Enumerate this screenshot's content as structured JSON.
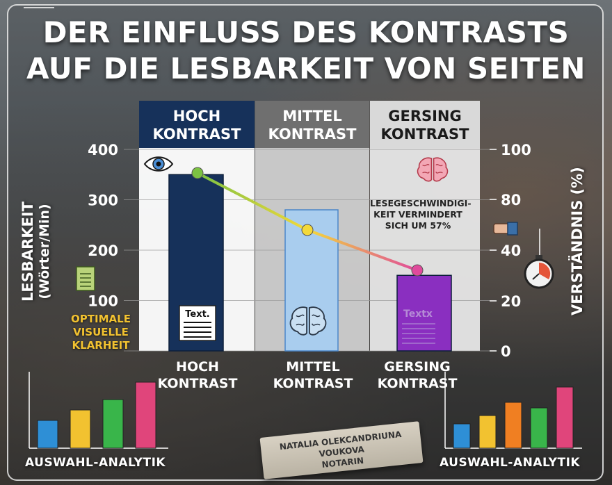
{
  "title": {
    "line1": "DER EINFLUSS DES KONTRASTS",
    "line2": "AUF DIE LESBARKEIT VON SEITEN"
  },
  "chart_data": {
    "type": "bar",
    "categories": [
      "HOCH KONTRAST",
      "MITTEL KONTRAST",
      "GERSING KONTRAST"
    ],
    "column_headers": [
      [
        "HOCH",
        "KONTRAST"
      ],
      [
        "MITTEL",
        "KONTRAST"
      ],
      [
        "GERSING",
        "KONTRAST"
      ]
    ],
    "x_labels": [
      [
        "HOCH",
        "KONTRAST"
      ],
      [
        "MITTEL",
        "KONTRAST"
      ],
      [
        "GERSING",
        "KONTRAST"
      ]
    ],
    "bar_series": {
      "values": [
        350,
        280,
        150
      ],
      "colors": [
        "#16315a",
        "#a9cdee",
        "#8a2fc0"
      ]
    },
    "line_series": {
      "values": [
        90,
        60,
        40
      ],
      "colors": [
        "#7cc242",
        "#f3d93a",
        "#e04a9c"
      ]
    },
    "y_left": {
      "label_line1": "LESBARKEIT",
      "label_line2": "(Wörter/Min)",
      "ylim": [
        0,
        400
      ],
      "ticks": [
        "0",
        "100",
        "200",
        "300",
        "400"
      ]
    },
    "y_right": {
      "label": "VERSTÄNDNIS (%)",
      "ylim": [
        0,
        100
      ],
      "ticks": [
        "0",
        "20",
        "40",
        "80",
        "100"
      ]
    },
    "annotation": [
      "LESEGESCHWINDIGI-",
      "KEIT VERMINDERT",
      "SICH UM 57%"
    ],
    "grid": true
  },
  "side_note": {
    "line1": "OPTIMALE",
    "line2": "VISUELLE",
    "line3": "KLARHEIT"
  },
  "bar_texts": {
    "high": "Text.",
    "low": "Textx"
  },
  "analytics_left": {
    "label": "AUSWAHL-ANALYTIK",
    "values": [
      40,
      55,
      70,
      95
    ],
    "colors": [
      "#2e8fd6",
      "#f2c230",
      "#39b54a",
      "#e0457b"
    ]
  },
  "analytics_right": {
    "label": "AUSWAHL-ANALYTIK",
    "values": [
      35,
      47,
      66,
      58,
      88
    ],
    "colors": [
      "#2e8fd6",
      "#f2c230",
      "#f07f22",
      "#39b54a",
      "#e0457b"
    ]
  },
  "nameplate": {
    "line1": "NATALIA OLEKCANDRIUNA VOUKOVA",
    "line2": "NOTARIN"
  },
  "icons": {
    "eye": "eye-icon",
    "brain": "brain-icon",
    "document": "document-icon",
    "stopwatch": "stopwatch-icon",
    "pointing_hand": "pointing-hand-icon"
  }
}
